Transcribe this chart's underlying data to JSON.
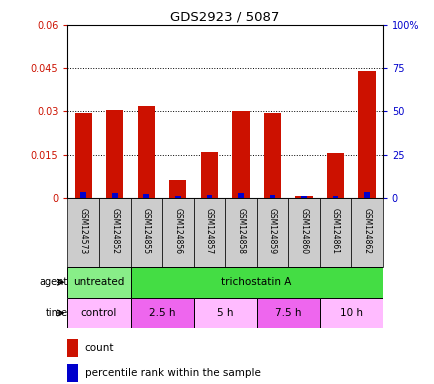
{
  "title": "GDS2923 / 5087",
  "samples": [
    "GSM124573",
    "GSM124852",
    "GSM124855",
    "GSM124856",
    "GSM124857",
    "GSM124858",
    "GSM124859",
    "GSM124860",
    "GSM124861",
    "GSM124862"
  ],
  "count_values": [
    0.0293,
    0.0305,
    0.032,
    0.006,
    0.016,
    0.0302,
    0.0293,
    0.0005,
    0.0155,
    0.044
  ],
  "percentile_values": [
    3.5,
    2.5,
    2.0,
    1.0,
    1.5,
    3.0,
    1.5,
    1.0,
    1.0,
    3.5
  ],
  "ylim_left": [
    0,
    0.06
  ],
  "ylim_right": [
    0,
    100
  ],
  "yticks_left": [
    0,
    0.015,
    0.03,
    0.045,
    0.06
  ],
  "yticks_right": [
    0,
    25,
    50,
    75,
    100
  ],
  "ytick_labels_left": [
    "0",
    "0.015",
    "0.03",
    "0.045",
    "0.06"
  ],
  "ytick_labels_right": [
    "0",
    "25",
    "50",
    "75",
    "100%"
  ],
  "count_color": "#cc1100",
  "percentile_color": "#0000cc",
  "agent_groups": [
    {
      "label": "untreated",
      "start": 0,
      "end": 2,
      "color": "#88ee88"
    },
    {
      "label": "trichostatin A",
      "start": 2,
      "end": 10,
      "color": "#44dd44"
    }
  ],
  "time_groups": [
    {
      "label": "control",
      "start": 0,
      "end": 2,
      "color": "#ffbbff"
    },
    {
      "label": "2.5 h",
      "start": 2,
      "end": 4,
      "color": "#ee66ee"
    },
    {
      "label": "5 h",
      "start": 4,
      "end": 6,
      "color": "#ffbbff"
    },
    {
      "label": "7.5 h",
      "start": 6,
      "end": 8,
      "color": "#ee66ee"
    },
    {
      "label": "10 h",
      "start": 8,
      "end": 10,
      "color": "#ffbbff"
    }
  ],
  "bg_color": "#ffffff",
  "tick_bg_color": "#cccccc",
  "legend_count_label": "count",
  "legend_percentile_label": "percentile rank within the sample"
}
